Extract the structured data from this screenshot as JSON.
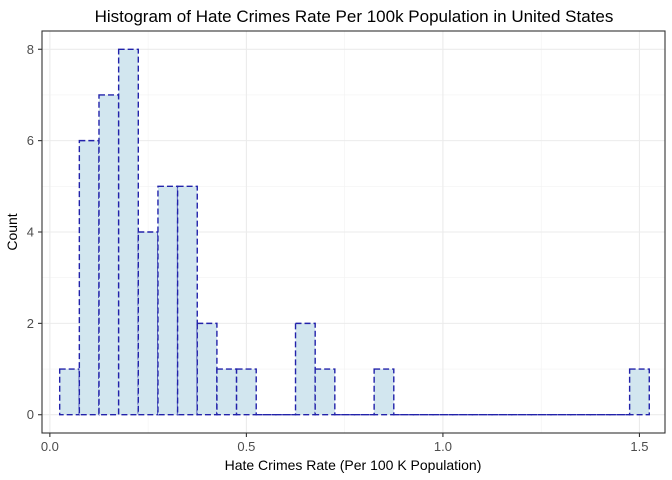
{
  "chart_data": {
    "type": "bar",
    "title": "Histogram of Hate Crimes Rate Per 100k Population in United States",
    "xlabel": "Hate Crimes Rate (Per 100 K Population)",
    "ylabel": "Count",
    "xlim": [
      -0.02,
      1.565
    ],
    "ylim": [
      -0.4,
      8.4
    ],
    "x_ticks": [
      0.0,
      0.5,
      1.0,
      1.5
    ],
    "x_tick_labels": [
      "0.0",
      "0.5",
      "1.0",
      "1.5"
    ],
    "y_ticks": [
      0,
      2,
      4,
      6,
      8
    ],
    "y_tick_labels": [
      "0",
      "2",
      "4",
      "6",
      "8"
    ],
    "grid": true,
    "bin_width": 0.05,
    "bins": [
      {
        "x0": 0.025,
        "x1": 0.075,
        "count": 1
      },
      {
        "x0": 0.075,
        "x1": 0.125,
        "count": 6
      },
      {
        "x0": 0.125,
        "x1": 0.175,
        "count": 7
      },
      {
        "x0": 0.175,
        "x1": 0.225,
        "count": 8
      },
      {
        "x0": 0.225,
        "x1": 0.275,
        "count": 4
      },
      {
        "x0": 0.275,
        "x1": 0.325,
        "count": 5
      },
      {
        "x0": 0.325,
        "x1": 0.375,
        "count": 5
      },
      {
        "x0": 0.375,
        "x1": 0.425,
        "count": 2
      },
      {
        "x0": 0.425,
        "x1": 0.475,
        "count": 1
      },
      {
        "x0": 0.475,
        "x1": 0.525,
        "count": 1
      },
      {
        "x0": 0.525,
        "x1": 0.575,
        "count": 0
      },
      {
        "x0": 0.575,
        "x1": 0.625,
        "count": 0
      },
      {
        "x0": 0.625,
        "x1": 0.675,
        "count": 2
      },
      {
        "x0": 0.675,
        "x1": 0.725,
        "count": 1
      },
      {
        "x0": 0.725,
        "x1": 0.775,
        "count": 0
      },
      {
        "x0": 0.775,
        "x1": 0.825,
        "count": 0
      },
      {
        "x0": 0.825,
        "x1": 0.875,
        "count": 1
      },
      {
        "x0": 0.875,
        "x1": 0.925,
        "count": 0
      },
      {
        "x0": 0.925,
        "x1": 0.975,
        "count": 0
      },
      {
        "x0": 0.975,
        "x1": 1.025,
        "count": 0
      },
      {
        "x0": 1.025,
        "x1": 1.075,
        "count": 0
      },
      {
        "x0": 1.075,
        "x1": 1.125,
        "count": 0
      },
      {
        "x0": 1.125,
        "x1": 1.175,
        "count": 0
      },
      {
        "x0": 1.175,
        "x1": 1.225,
        "count": 0
      },
      {
        "x0": 1.225,
        "x1": 1.275,
        "count": 0
      },
      {
        "x0": 1.275,
        "x1": 1.325,
        "count": 0
      },
      {
        "x0": 1.325,
        "x1": 1.375,
        "count": 0
      },
      {
        "x0": 1.375,
        "x1": 1.425,
        "count": 0
      },
      {
        "x0": 1.425,
        "x1": 1.475,
        "count": 0
      },
      {
        "x0": 1.475,
        "x1": 1.525,
        "count": 1
      }
    ],
    "colors": {
      "bar_fill": "#d2e6ef",
      "bar_outline": "#2222aa"
    }
  }
}
